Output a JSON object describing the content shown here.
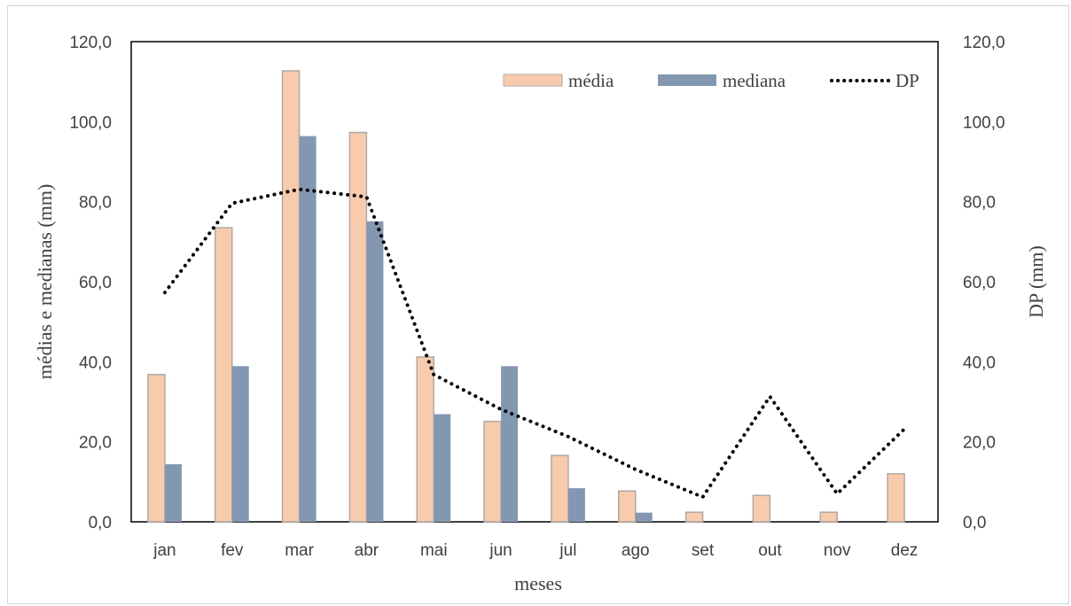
{
  "chart_data": {
    "type": "bar",
    "categories": [
      "jan",
      "fev",
      "mar",
      "abr",
      "mai",
      "jun",
      "jul",
      "ago",
      "set",
      "out",
      "nov",
      "dez"
    ],
    "series": [
      {
        "name": "média",
        "kind": "bar",
        "axis": "left",
        "color": "#f8cbad",
        "stroke": "#b0a8a4",
        "values": [
          36.8,
          73.5,
          112.7,
          97.3,
          41.2,
          25.1,
          16.6,
          7.7,
          2.4,
          6.6,
          2.4,
          12.0
        ]
      },
      {
        "name": "mediana",
        "kind": "bar",
        "axis": "left",
        "color": "#8497b0",
        "values": [
          14.4,
          38.9,
          96.4,
          75.1,
          26.9,
          38.9,
          8.4,
          2.3,
          0.0,
          0.0,
          0.0,
          0.0
        ]
      },
      {
        "name": "DP",
        "kind": "line",
        "axis": "right",
        "color": "#000000",
        "style": "dotted",
        "values": [
          57.3,
          79.6,
          83.1,
          81.2,
          36.8,
          28.1,
          21.3,
          13.1,
          6.2,
          31.3,
          7.0,
          23.2
        ]
      }
    ],
    "xlabel": "meses",
    "ylabel": "médias e medianas (mm)",
    "y2label": "DP (mm)",
    "ylim": [
      0,
      120
    ],
    "y2lim": [
      0,
      120
    ],
    "yticks": [
      "0,0",
      "20,0",
      "40,0",
      "60,0",
      "80,0",
      "100,0",
      "120,0"
    ],
    "y2ticks": [
      "0,0",
      "20,0",
      "40,0",
      "60,0",
      "80,0",
      "100,0",
      "120,0"
    ],
    "grid": false,
    "legend": "top-right"
  }
}
